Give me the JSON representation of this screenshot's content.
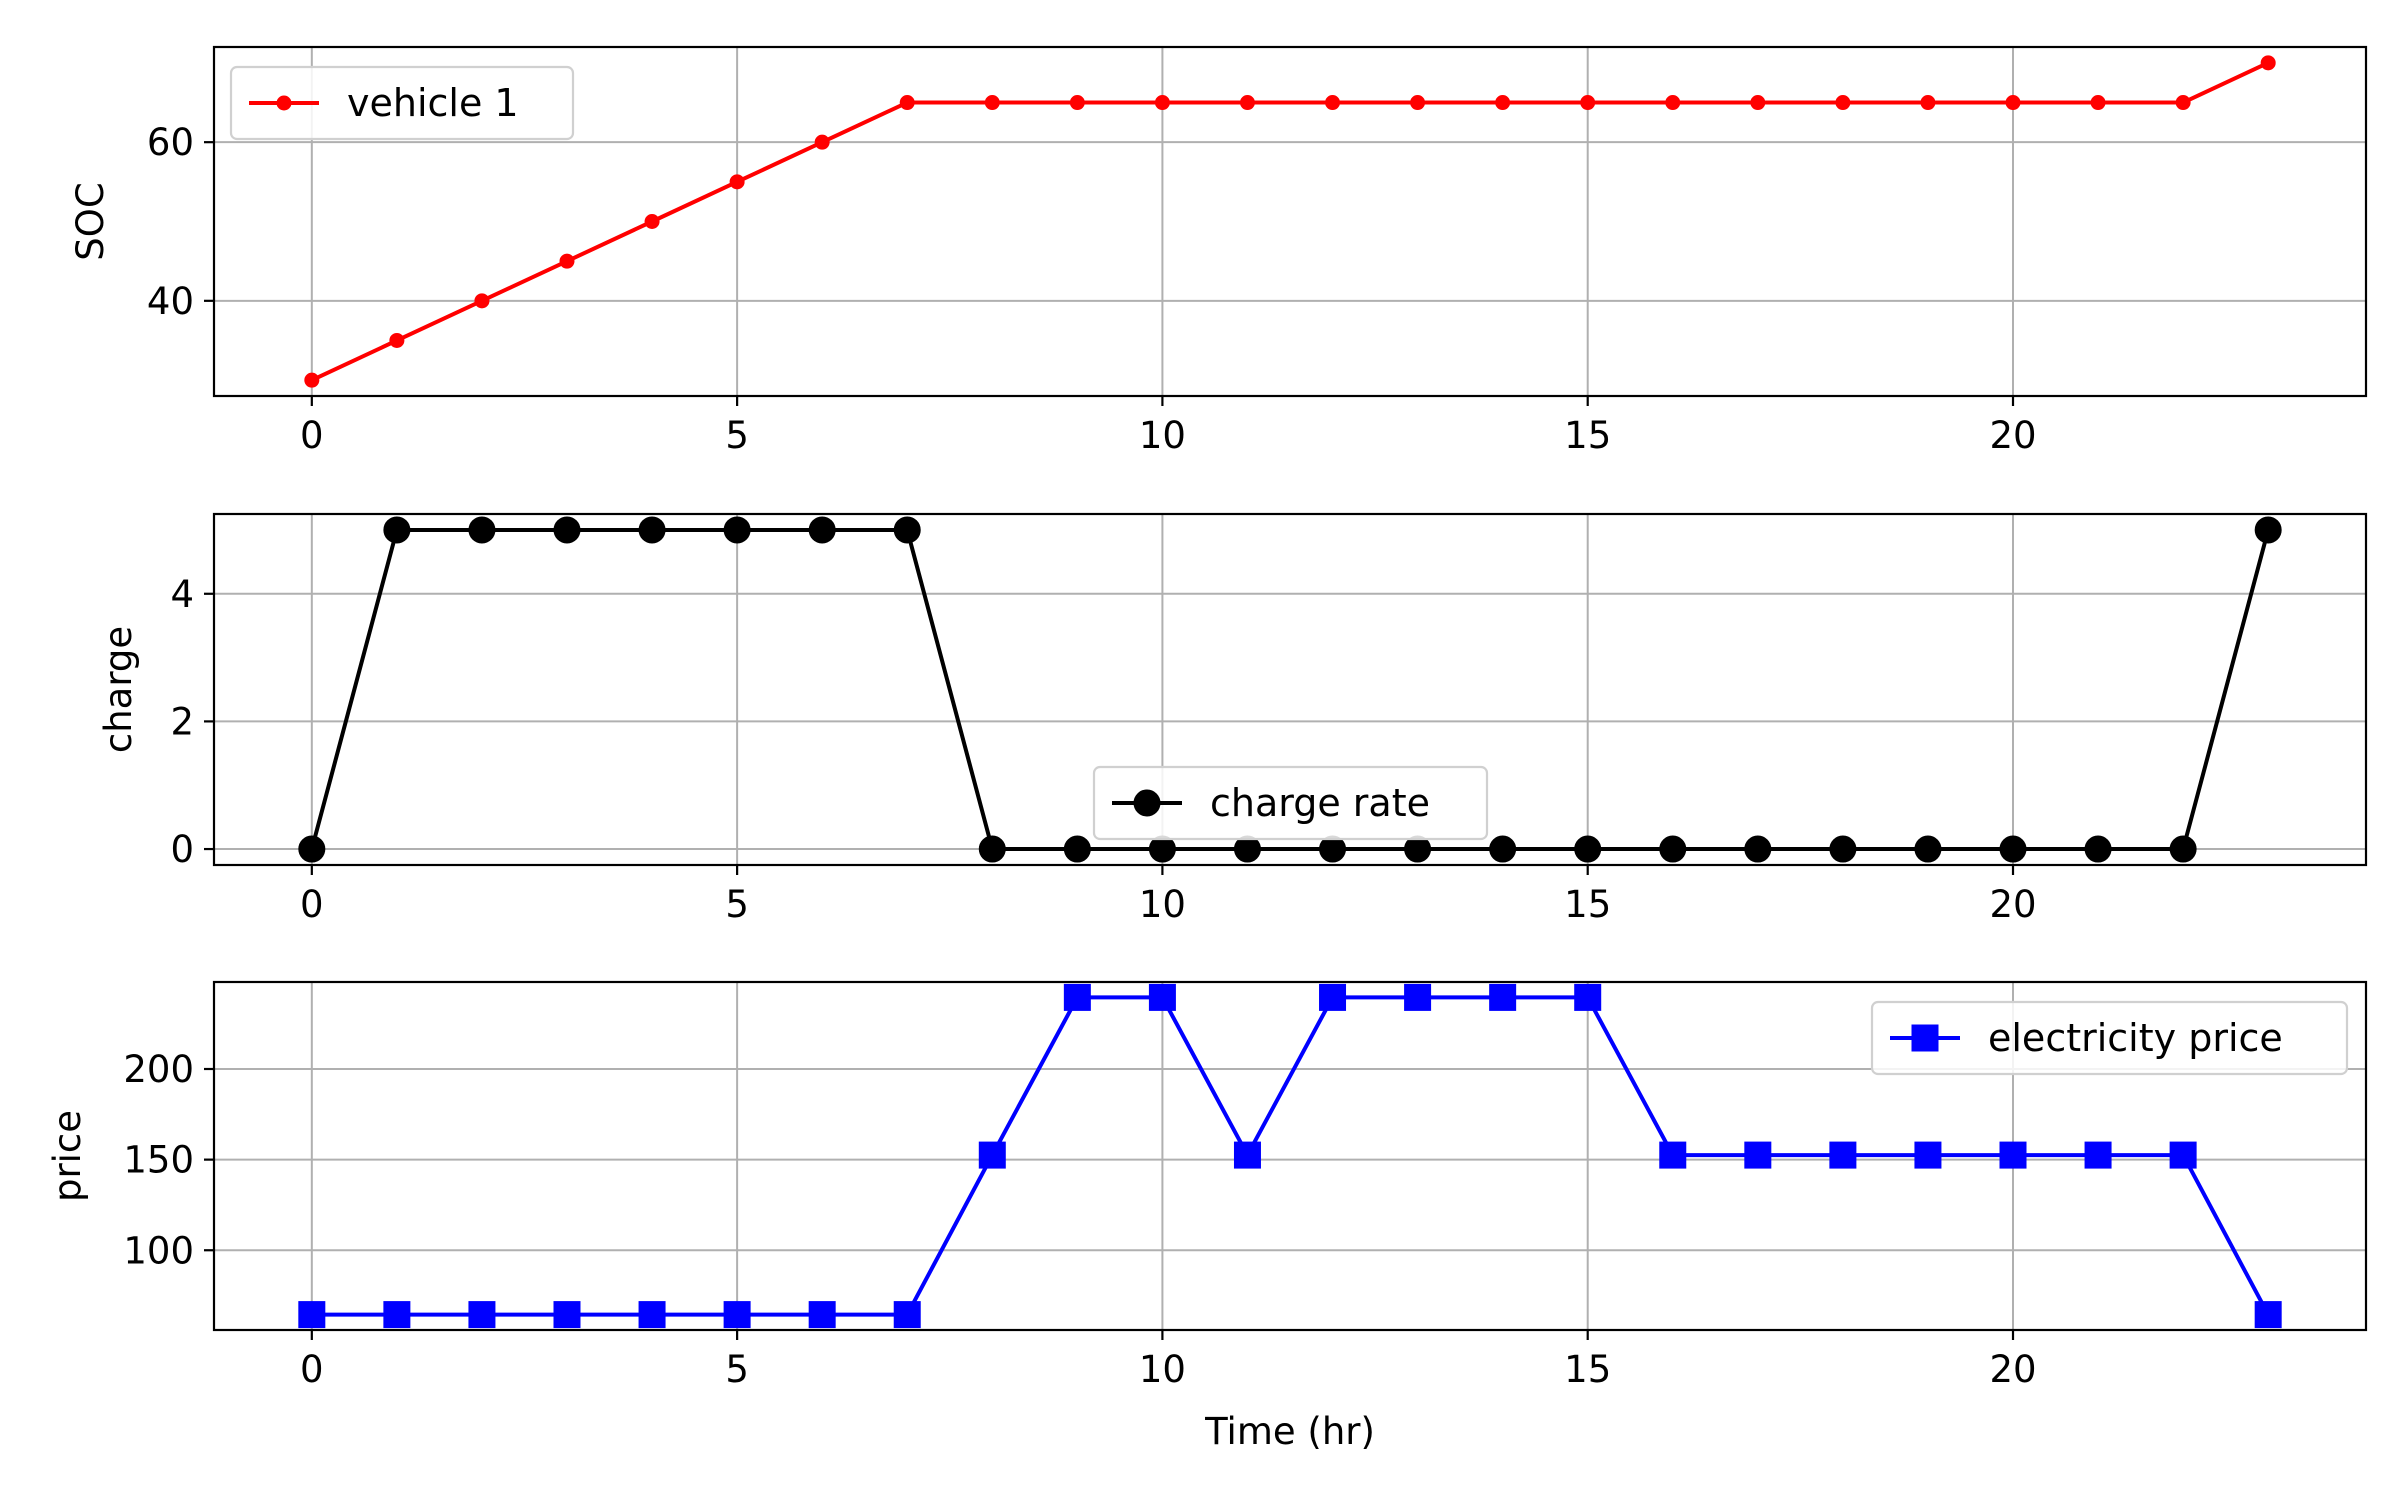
{
  "chart_data": [
    {
      "type": "line",
      "ylabel": "SOC",
      "xlabel": "",
      "xlim": [
        -1.15,
        24.15
      ],
      "ylim": [
        28.0,
        72.0
      ],
      "xticks": [
        0,
        5,
        10,
        15,
        20
      ],
      "yticks": [
        40,
        60
      ],
      "grid": true,
      "legend_position": "upper-left",
      "series": [
        {
          "name": "vehicle 1",
          "color": "#ff0000",
          "marker": "dot",
          "x": [
            0,
            1,
            2,
            3,
            4,
            5,
            6,
            7,
            8,
            9,
            10,
            11,
            12,
            13,
            14,
            15,
            16,
            17,
            18,
            19,
            20,
            21,
            22,
            23
          ],
          "y": [
            30,
            35,
            40,
            45,
            50,
            55,
            60,
            65,
            65,
            65,
            65,
            65,
            65,
            65,
            65,
            65,
            65,
            65,
            65,
            65,
            65,
            65,
            65,
            70
          ]
        }
      ]
    },
    {
      "type": "line",
      "ylabel": "charge",
      "xlabel": "",
      "xlim": [
        -1.15,
        24.15
      ],
      "ylim": [
        -0.25,
        5.25
      ],
      "xticks": [
        0,
        5,
        10,
        15,
        20
      ],
      "yticks": [
        0,
        2,
        4
      ],
      "grid": true,
      "legend_position": "lower-center",
      "series": [
        {
          "name": "charge rate",
          "color": "#000000",
          "marker": "circle",
          "x": [
            0,
            1,
            2,
            3,
            4,
            5,
            6,
            7,
            8,
            9,
            10,
            11,
            12,
            13,
            14,
            15,
            16,
            17,
            18,
            19,
            20,
            21,
            22,
            23
          ],
          "y": [
            0,
            5,
            5,
            5,
            5,
            5,
            5,
            5,
            0,
            0,
            0,
            0,
            0,
            0,
            0,
            0,
            0,
            0,
            0,
            0,
            0,
            0,
            0,
            5
          ]
        }
      ]
    },
    {
      "type": "line",
      "ylabel": "price",
      "xlabel": "Time (hr)",
      "xlim": [
        -1.15,
        24.15
      ],
      "ylim": [
        56.0,
        248.0
      ],
      "xticks": [
        0,
        5,
        10,
        15,
        20
      ],
      "yticks": [
        100,
        150,
        200
      ],
      "grid": true,
      "legend_position": "upper-right",
      "series": [
        {
          "name": "electricity price",
          "color": "#0000ff",
          "marker": "square",
          "x": [
            0,
            1,
            2,
            3,
            4,
            5,
            6,
            7,
            8,
            9,
            10,
            11,
            12,
            13,
            14,
            15,
            16,
            17,
            18,
            19,
            20,
            21,
            22,
            23
          ],
          "y": [
            64.5,
            64.5,
            64.5,
            64.5,
            64.5,
            64.5,
            64.5,
            64.5,
            152.5,
            239.5,
            239.5,
            152.5,
            239.5,
            239.5,
            239.5,
            239.5,
            152.5,
            152.5,
            152.5,
            152.5,
            152.5,
            152.5,
            152.5,
            64.5
          ]
        }
      ]
    }
  ]
}
